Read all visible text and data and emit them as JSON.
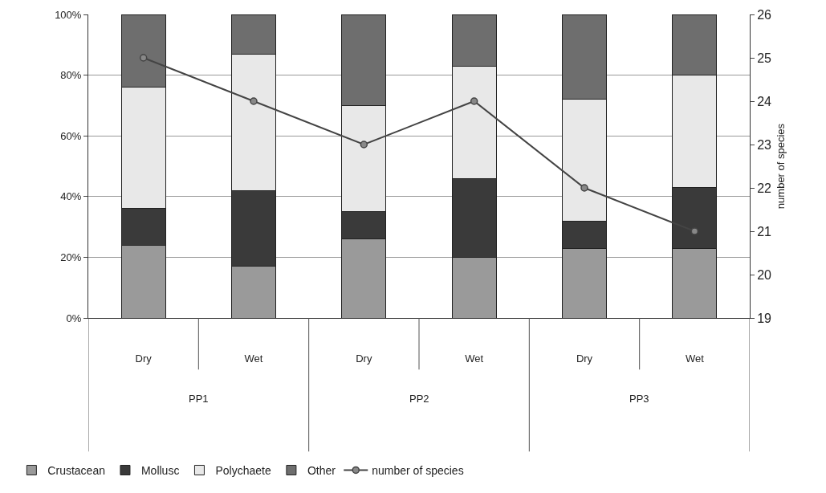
{
  "chart_data": {
    "type": "bar",
    "stacked": true,
    "y2label": "number of species",
    "categories": [
      "Dry",
      "Wet",
      "Dry",
      "Wet",
      "Dry",
      "Wet"
    ],
    "annotations": [
      "PP1",
      "PP2",
      "PP3"
    ],
    "series": [
      {
        "name": "Crustacean",
        "color": "#9a9a9a",
        "values": [
          24,
          17,
          26,
          20,
          23,
          23
        ]
      },
      {
        "name": "Mollusc",
        "color": "#3a3a3a",
        "values": [
          12,
          25,
          9,
          26,
          9,
          20
        ]
      },
      {
        "name": "Polychaete",
        "color": "#e8e8e8",
        "values": [
          40,
          45,
          35,
          37,
          40,
          37
        ]
      },
      {
        "name": "Other",
        "color": "#6e6e6e",
        "values": [
          24,
          13,
          30,
          17,
          28,
          20
        ]
      },
      {
        "name": "number of species",
        "type": "line",
        "axis": "y2",
        "color": "#444444",
        "marker": "circle",
        "values": [
          25,
          24,
          23,
          24,
          22,
          21
        ]
      }
    ],
    "ylim": [
      0,
      100
    ],
    "yticks": [
      {
        "value": 0,
        "label": "0%"
      },
      {
        "value": 20,
        "label": "20%"
      },
      {
        "value": 40,
        "label": "40%"
      },
      {
        "value": 60,
        "label": "60%"
      },
      {
        "value": 80,
        "label": "80%"
      },
      {
        "value": 100,
        "label": "100%"
      }
    ],
    "y2lim": [
      19,
      26
    ],
    "y2ticks": [
      19,
      20,
      21,
      22,
      23,
      24,
      25,
      26
    ],
    "grid": "y",
    "legend": "bottom"
  }
}
